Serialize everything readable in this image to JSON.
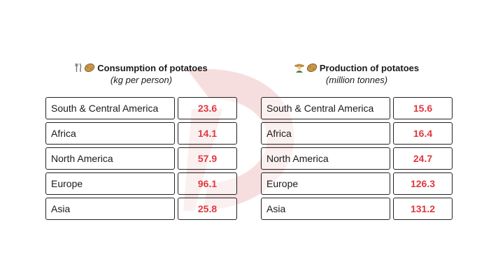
{
  "chart_data": [
    {
      "type": "table",
      "title": "Consumption of potatoes",
      "subtitle": "(kg per person)",
      "categories": [
        "South & Central America",
        "Africa",
        "North America",
        "Europe",
        "Asia"
      ],
      "values": [
        23.6,
        14.1,
        57.9,
        96.1,
        25.8
      ]
    },
    {
      "type": "table",
      "title": "Production of potatoes",
      "subtitle": "(million tonnes)",
      "categories": [
        "South & Central America",
        "Africa",
        "North America",
        "Europe",
        "Asia"
      ],
      "values": [
        15.6,
        16.4,
        24.7,
        126.3,
        131.2
      ]
    }
  ],
  "colors": {
    "value": "#e0383e",
    "border": "#222222",
    "watermark": "#f7dede"
  },
  "icons": {
    "consumption": [
      "fork-knife-icon",
      "potato-icon"
    ],
    "production": [
      "farmer-icon",
      "potato-icon"
    ]
  }
}
